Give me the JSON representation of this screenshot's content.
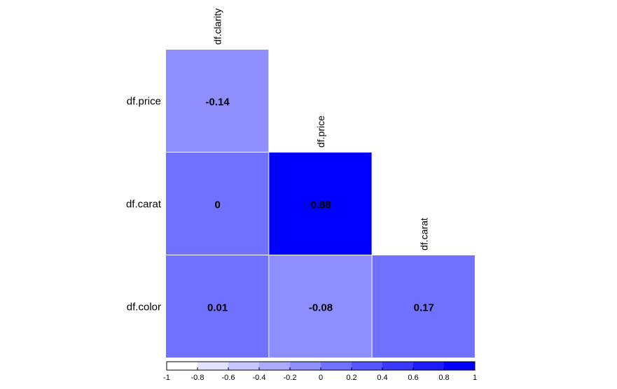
{
  "chart_data": {
    "type": "heatmap",
    "layout": "lower-triangle correlation matrix",
    "rows": [
      "df.price",
      "df.carat",
      "df.color"
    ],
    "columns": [
      "df.clarity",
      "df.price",
      "df.carat"
    ],
    "cells": [
      {
        "row": "df.price",
        "col": "df.clarity",
        "value": -0.14,
        "label": "-0.14"
      },
      {
        "row": "df.carat",
        "col": "df.clarity",
        "value": 0,
        "label": "0"
      },
      {
        "row": "df.carat",
        "col": "df.price",
        "value": 0.88,
        "label": "0.88"
      },
      {
        "row": "df.color",
        "col": "df.clarity",
        "value": 0.01,
        "label": "0.01"
      },
      {
        "row": "df.color",
        "col": "df.price",
        "value": -0.08,
        "label": "-0.08"
      },
      {
        "row": "df.color",
        "col": "df.carat",
        "value": 0.17,
        "label": "0.17"
      }
    ],
    "colorbar": {
      "range": [
        -1,
        1
      ],
      "ticks": [
        "-1",
        "-0.8",
        "-0.6",
        "-0.4",
        "-0.2",
        "0",
        "0.2",
        "0.4",
        "0.6",
        "0.8",
        "1"
      ],
      "palette": [
        "#ffffff",
        "#e3e3ff",
        "#c6c6ff",
        "#aaaaff",
        "#8e8eff",
        "#7171ff",
        "#5555ff",
        "#3939ff",
        "#1c1cff",
        "#0000ff"
      ]
    },
    "title": "",
    "xlabel": "",
    "ylabel": ""
  }
}
